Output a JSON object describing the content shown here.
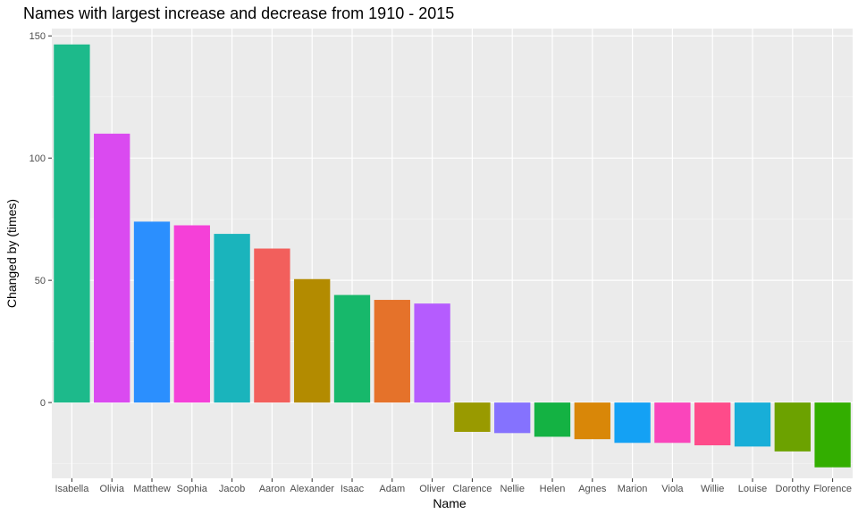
{
  "chart_data": {
    "type": "bar",
    "title": "Names with largest increase and decrease from 1910 - 2015",
    "xlabel": "Name",
    "ylabel": "Changed by (times)",
    "categories": [
      "Isabella",
      "Olivia",
      "Matthew",
      "Sophia",
      "Jacob",
      "Aaron",
      "Alexander",
      "Isaac",
      "Adam",
      "Oliver",
      "Clarence",
      "Nellie",
      "Helen",
      "Agnes",
      "Marion",
      "Viola",
      "Willie",
      "Louise",
      "Dorothy",
      "Florence"
    ],
    "values": [
      146.5,
      110,
      74,
      72.5,
      69,
      63,
      50.5,
      44,
      42,
      40.5,
      -12,
      -12.5,
      -14,
      -15,
      -16.5,
      -16.5,
      -17.5,
      -18,
      -20,
      -26.5
    ],
    "colors": [
      "#1dba8b",
      "#da4af0",
      "#2b8ffe",
      "#f540d8",
      "#1ab4bc",
      "#f25f5c",
      "#b38b00",
      "#17b86b",
      "#e5722a",
      "#b55cfe",
      "#999a00",
      "#8572fe",
      "#14b243",
      "#d98708",
      "#14a1f4",
      "#fa45bb",
      "#fe4b8a",
      "#18aed8",
      "#6ca200",
      "#33ae00"
    ],
    "yticks": [
      0,
      50,
      100,
      150
    ],
    "ylim": [
      -31,
      153
    ],
    "grid": true,
    "legend": "none"
  }
}
